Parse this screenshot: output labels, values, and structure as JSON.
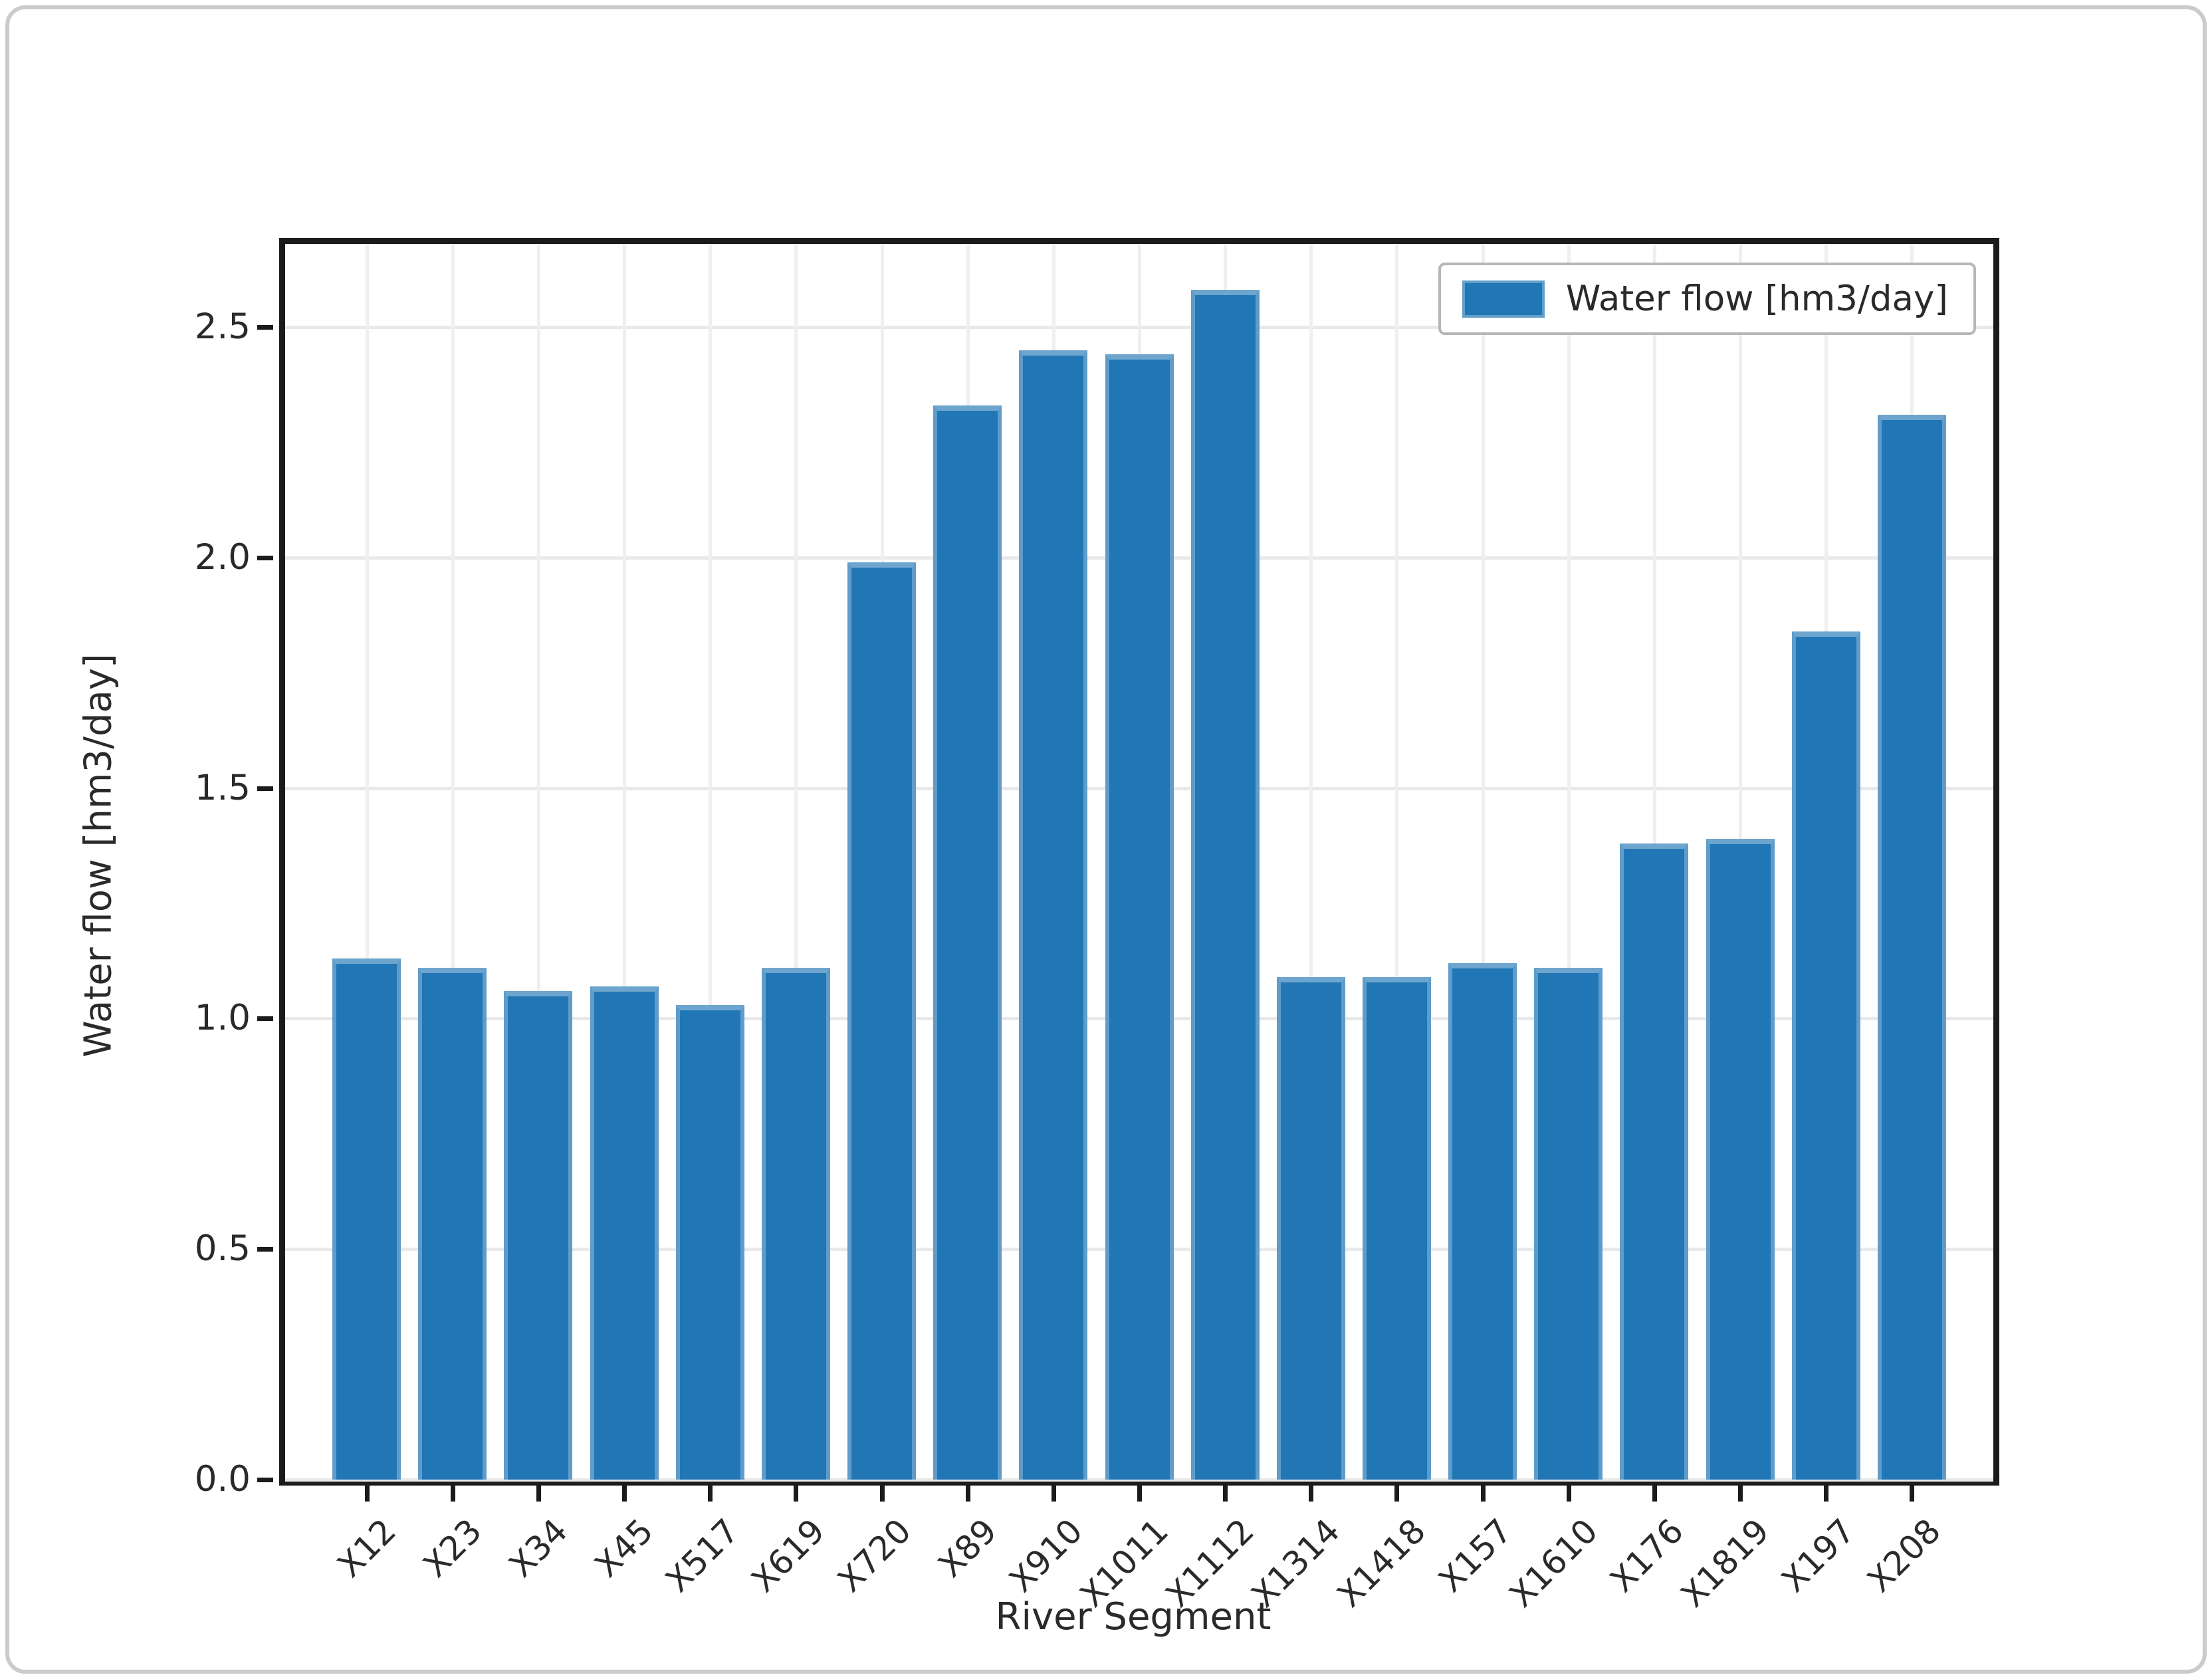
{
  "figure": {
    "background_color": "#ffffff",
    "frame_border_color": "#cbcbcb",
    "axes_frame_color": "#1b1b1b",
    "grid_color": "#e9e9e9"
  },
  "chart_data": {
    "type": "bar",
    "title": "",
    "xlabel": "River Segment",
    "ylabel": "Water flow [hm3/day]",
    "categories": [
      "X12",
      "X23",
      "X34",
      "X45",
      "X517",
      "X619",
      "X720",
      "X89",
      "X910",
      "X1011",
      "X1112",
      "X1314",
      "X1418",
      "X157",
      "X1610",
      "X176",
      "X1819",
      "X197",
      "X208"
    ],
    "values": [
      1.13,
      1.11,
      1.06,
      1.07,
      1.03,
      1.11,
      1.99,
      2.33,
      2.45,
      2.44,
      2.58,
      1.09,
      1.09,
      1.12,
      1.11,
      1.38,
      1.39,
      1.84,
      2.31
    ],
    "series_name": "Water flow [hm3/day]",
    "bar_color": "#2176b5",
    "ylim": [
      0,
      2.68
    ],
    "yticks": [
      "0.0",
      "0.5",
      "1.0",
      "1.5",
      "2.0",
      "2.5"
    ],
    "xtick_rotation_deg": 45,
    "grid": true,
    "legend": {
      "position": "upper-right",
      "label": "Water flow [hm3/day]",
      "swatch_color": "#2176b5"
    }
  }
}
